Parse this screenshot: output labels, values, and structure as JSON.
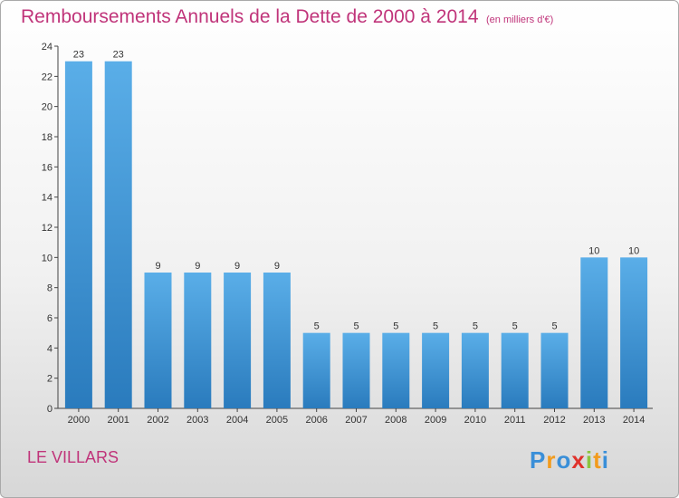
{
  "header": {
    "title": "Remboursements Annuels de la Dette de 2000 à 2014",
    "unit": "(en milliers d'€)"
  },
  "footer": {
    "place": "LE VILLARS",
    "logo_text": "Proxiti"
  },
  "colors": {
    "title": "#c0347a",
    "bar_top": "#5aaee8",
    "bar_bottom": "#2a7bbd",
    "axis": "#444444"
  },
  "chart_data": {
    "type": "bar",
    "categories": [
      "2000",
      "2001",
      "2002",
      "2003",
      "2004",
      "2005",
      "2006",
      "2007",
      "2008",
      "2009",
      "2010",
      "2011",
      "2012",
      "2013",
      "2014"
    ],
    "values": [
      23,
      23,
      9,
      9,
      9,
      9,
      5,
      5,
      5,
      5,
      5,
      5,
      5,
      10,
      10
    ],
    "title": "Remboursements Annuels de la Dette de 2000 à 2014",
    "xlabel": "",
    "ylabel": "",
    "ylim": [
      0,
      24
    ],
    "yticks": [
      0,
      2,
      4,
      6,
      8,
      10,
      12,
      14,
      16,
      18,
      20,
      22,
      24
    ],
    "grid": false,
    "legend": "none"
  }
}
